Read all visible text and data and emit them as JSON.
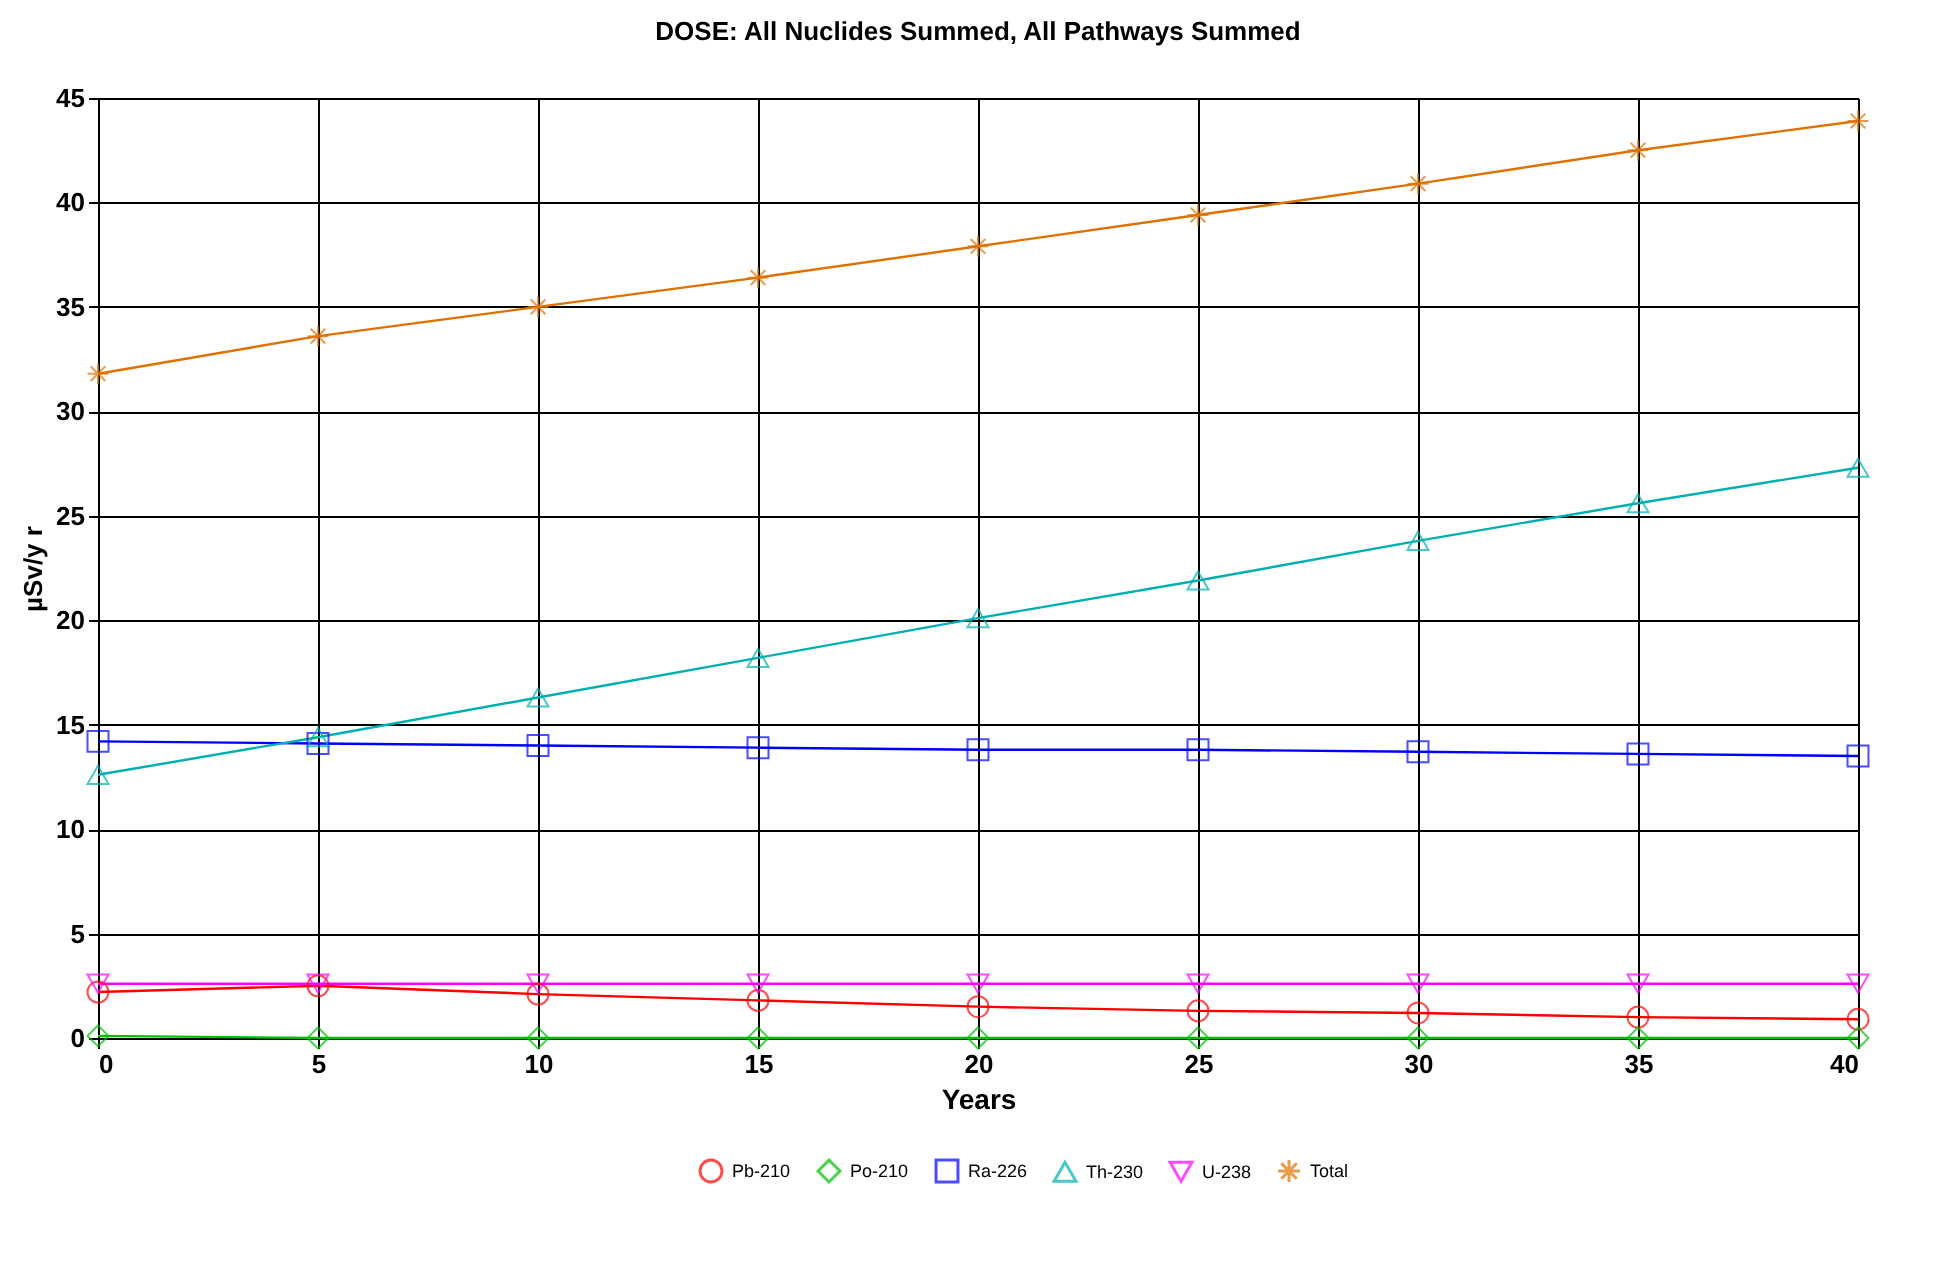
{
  "chart_data": {
    "type": "line",
    "title": "DOSE: All Nuclides Summed, All Pathways Summed",
    "xlabel": "Years",
    "ylabel": "µSv/y r",
    "x": [
      0,
      5,
      10,
      15,
      20,
      25,
      30,
      35,
      40
    ],
    "series": [
      {
        "name": "Pb-210",
        "color": "#ff0000",
        "marker": "circle",
        "values": [
          2.2,
          2.5,
          2.1,
          1.8,
          1.5,
          1.3,
          1.2,
          1.0,
          0.9
        ]
      },
      {
        "name": "Po-210",
        "color": "#00c000",
        "marker": "diamond",
        "values": [
          0.1,
          0,
          0,
          0,
          0,
          0,
          0,
          0,
          0
        ]
      },
      {
        "name": "Ra-226",
        "color": "#0000ff",
        "marker": "square",
        "values": [
          14.2,
          14.1,
          14.0,
          13.9,
          13.8,
          13.8,
          13.7,
          13.6,
          13.5
        ]
      },
      {
        "name": "Th-230",
        "color": "#00b0b0",
        "marker": "triangle",
        "values": [
          12.6,
          14.4,
          16.3,
          18.2,
          20.1,
          21.9,
          23.8,
          25.6,
          27.3
        ]
      },
      {
        "name": "U-238",
        "color": "#ff00ff",
        "marker": "triangle-down",
        "values": [
          2.6,
          2.6,
          2.6,
          2.6,
          2.6,
          2.6,
          2.6,
          2.6,
          2.6
        ]
      },
      {
        "name": "Total",
        "color": "#e07000",
        "marker": "cross",
        "values": [
          31.8,
          33.6,
          35.0,
          36.4,
          37.9,
          39.4,
          40.9,
          42.5,
          43.9
        ]
      }
    ],
    "xlim": [
      0,
      40
    ],
    "xticks": [
      0,
      5,
      10,
      15,
      20,
      25,
      30,
      35,
      40
    ],
    "ylim": [
      0,
      45
    ],
    "yticks": [
      0,
      5,
      10,
      15,
      20,
      25,
      30,
      35,
      40,
      45
    ],
    "grid": true,
    "legend": "bottom",
    "line_style": "solid"
  }
}
